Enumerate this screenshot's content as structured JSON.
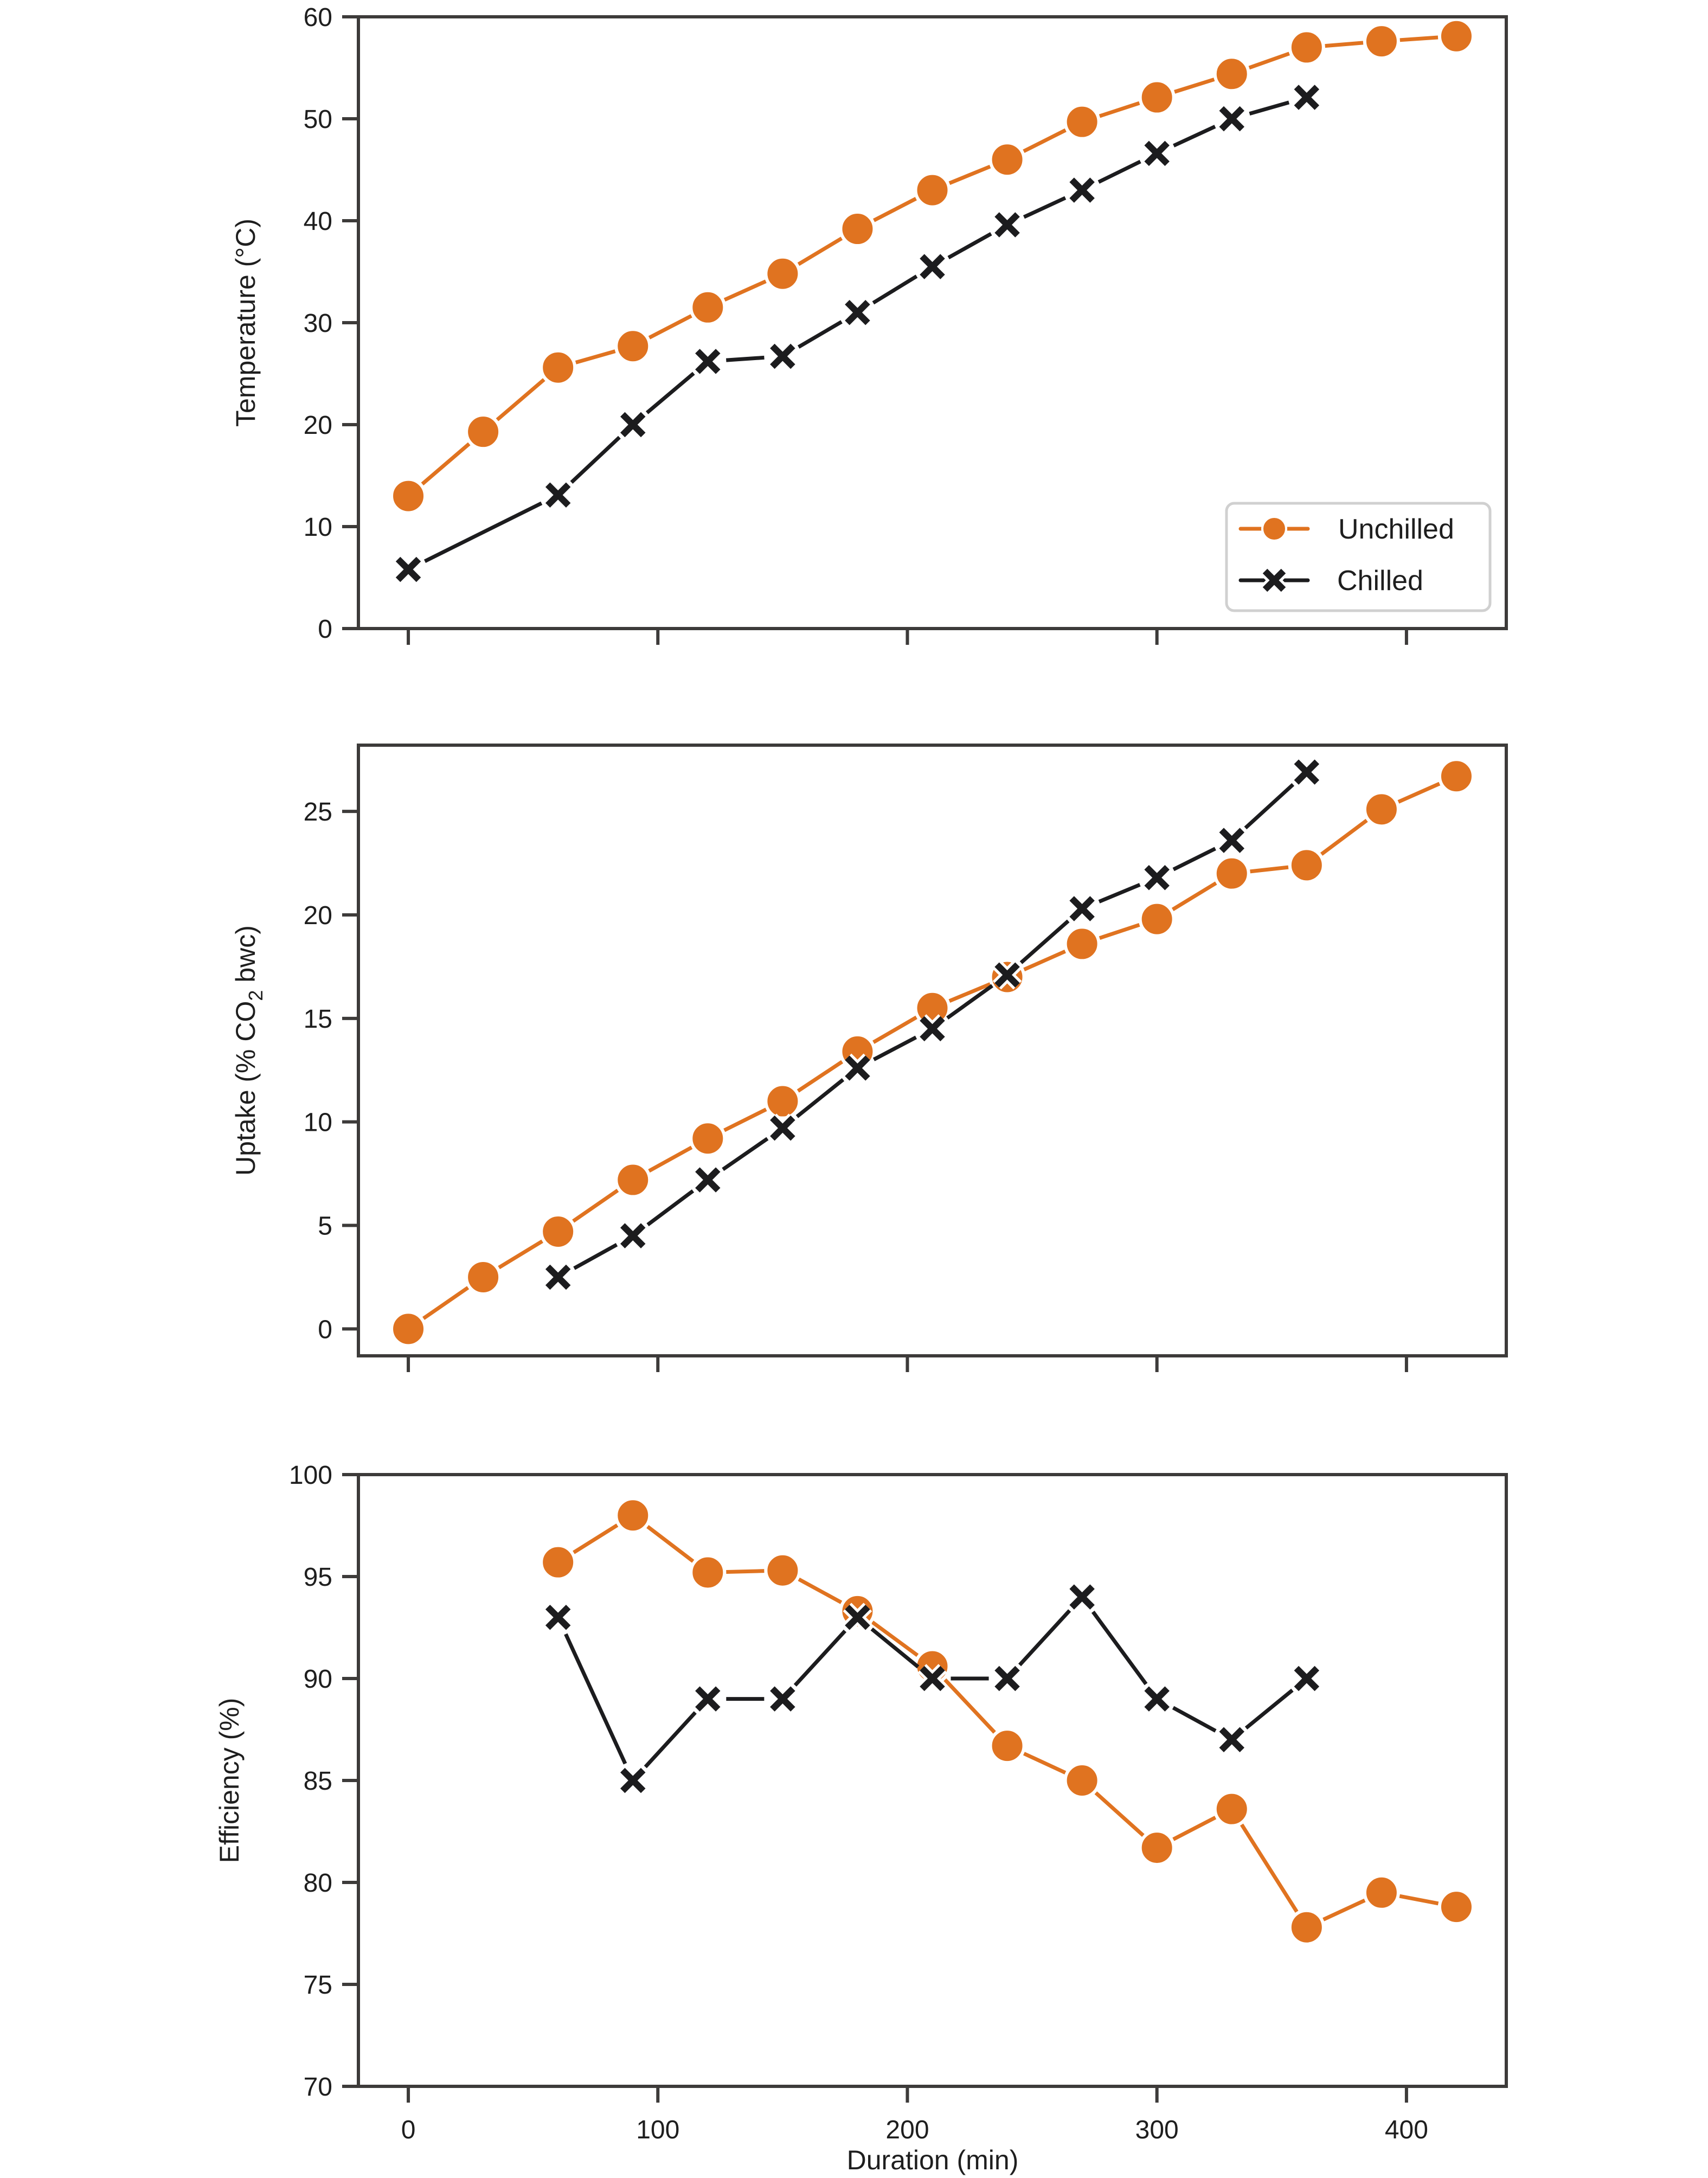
{
  "colors": {
    "unchilled": "#e07320",
    "chilled": "#1c1c1e",
    "axis": "#3d3b3a"
  },
  "legend": {
    "placement": "lower-right of top panel",
    "entries": [
      {
        "label": "Unchilled",
        "marker": "circle",
        "color": "#e07320"
      },
      {
        "label": "Chilled",
        "marker": "x",
        "color": "#1c1c1e"
      }
    ]
  },
  "shared_xlabel": "Duration (min)",
  "chart_data": [
    {
      "type": "line",
      "id": "temperature",
      "title": "",
      "xlabel": "",
      "ylabel": "Temperature (°C)",
      "xlim": [
        -20,
        440
      ],
      "ylim": [
        0,
        60
      ],
      "xticks": [
        0,
        100,
        200,
        300,
        400
      ],
      "xtick_labels_shown": false,
      "yticks": [
        0,
        10,
        20,
        30,
        40,
        50,
        60
      ],
      "grid": false,
      "series": [
        {
          "name": "Unchilled",
          "x": [
            0,
            30,
            60,
            90,
            120,
            150,
            180,
            210,
            240,
            270,
            300,
            330,
            360,
            390,
            420
          ],
          "y": [
            13.0,
            19.3,
            25.6,
            27.7,
            31.5,
            34.8,
            39.2,
            43.0,
            46.0,
            49.7,
            52.1,
            54.4,
            57.0,
            57.6,
            58.1
          ]
        },
        {
          "name": "Chilled",
          "x": [
            0,
            60,
            90,
            120,
            150,
            180,
            210,
            240,
            270,
            300,
            330,
            360
          ],
          "y": [
            5.8,
            13.1,
            20.0,
            26.2,
            26.7,
            31.0,
            35.5,
            39.6,
            43.0,
            46.6,
            50.0,
            52.1
          ]
        }
      ]
    },
    {
      "type": "line",
      "id": "uptake",
      "title": "",
      "xlabel": "",
      "ylabel": "Uptake (% CO2 bwc)",
      "ylabel_parts": [
        "Uptake (% CO",
        "2",
        " bwc)"
      ],
      "xlim": [
        -20,
        440
      ],
      "ylim": [
        -1.3,
        28.2
      ],
      "xticks": [
        0,
        100,
        200,
        300,
        400
      ],
      "xtick_labels_shown": false,
      "yticks": [
        0,
        5,
        10,
        15,
        20,
        25
      ],
      "grid": false,
      "series": [
        {
          "name": "Unchilled",
          "x": [
            0,
            30,
            60,
            90,
            120,
            150,
            180,
            210,
            240,
            270,
            300,
            330,
            360,
            390,
            420
          ],
          "y": [
            0.0,
            2.5,
            4.7,
            7.2,
            9.2,
            11.0,
            13.4,
            15.5,
            17.0,
            18.6,
            19.8,
            22.0,
            22.4,
            25.1,
            26.7
          ]
        },
        {
          "name": "Chilled",
          "x": [
            60,
            90,
            120,
            150,
            180,
            210,
            240,
            270,
            300,
            330,
            360
          ],
          "y": [
            2.5,
            4.5,
            7.2,
            9.7,
            12.6,
            14.5,
            17.1,
            20.3,
            21.8,
            23.6,
            26.9
          ]
        }
      ]
    },
    {
      "type": "line",
      "id": "efficiency",
      "title": "",
      "xlabel": "Duration (min)",
      "ylabel": "Efficiency (%)",
      "xlim": [
        -20,
        440
      ],
      "ylim": [
        70,
        100
      ],
      "xticks": [
        0,
        100,
        200,
        300,
        400
      ],
      "xtick_labels_shown": true,
      "yticks": [
        70,
        75,
        80,
        85,
        90,
        95,
        100
      ],
      "grid": false,
      "series": [
        {
          "name": "Unchilled",
          "x": [
            60,
            90,
            120,
            150,
            180,
            210,
            240,
            270,
            300,
            330,
            360,
            390,
            420
          ],
          "y": [
            95.7,
            98.0,
            95.2,
            95.3,
            93.3,
            90.6,
            86.7,
            85.0,
            81.7,
            83.6,
            77.8,
            79.5,
            78.8
          ]
        },
        {
          "name": "Chilled",
          "x": [
            60,
            90,
            120,
            150,
            180,
            210,
            240,
            270,
            300,
            330,
            360
          ],
          "y": [
            93.0,
            85.0,
            89.0,
            89.0,
            93.0,
            90.0,
            90.0,
            94.0,
            89.0,
            87.0,
            90.0
          ]
        }
      ]
    }
  ]
}
